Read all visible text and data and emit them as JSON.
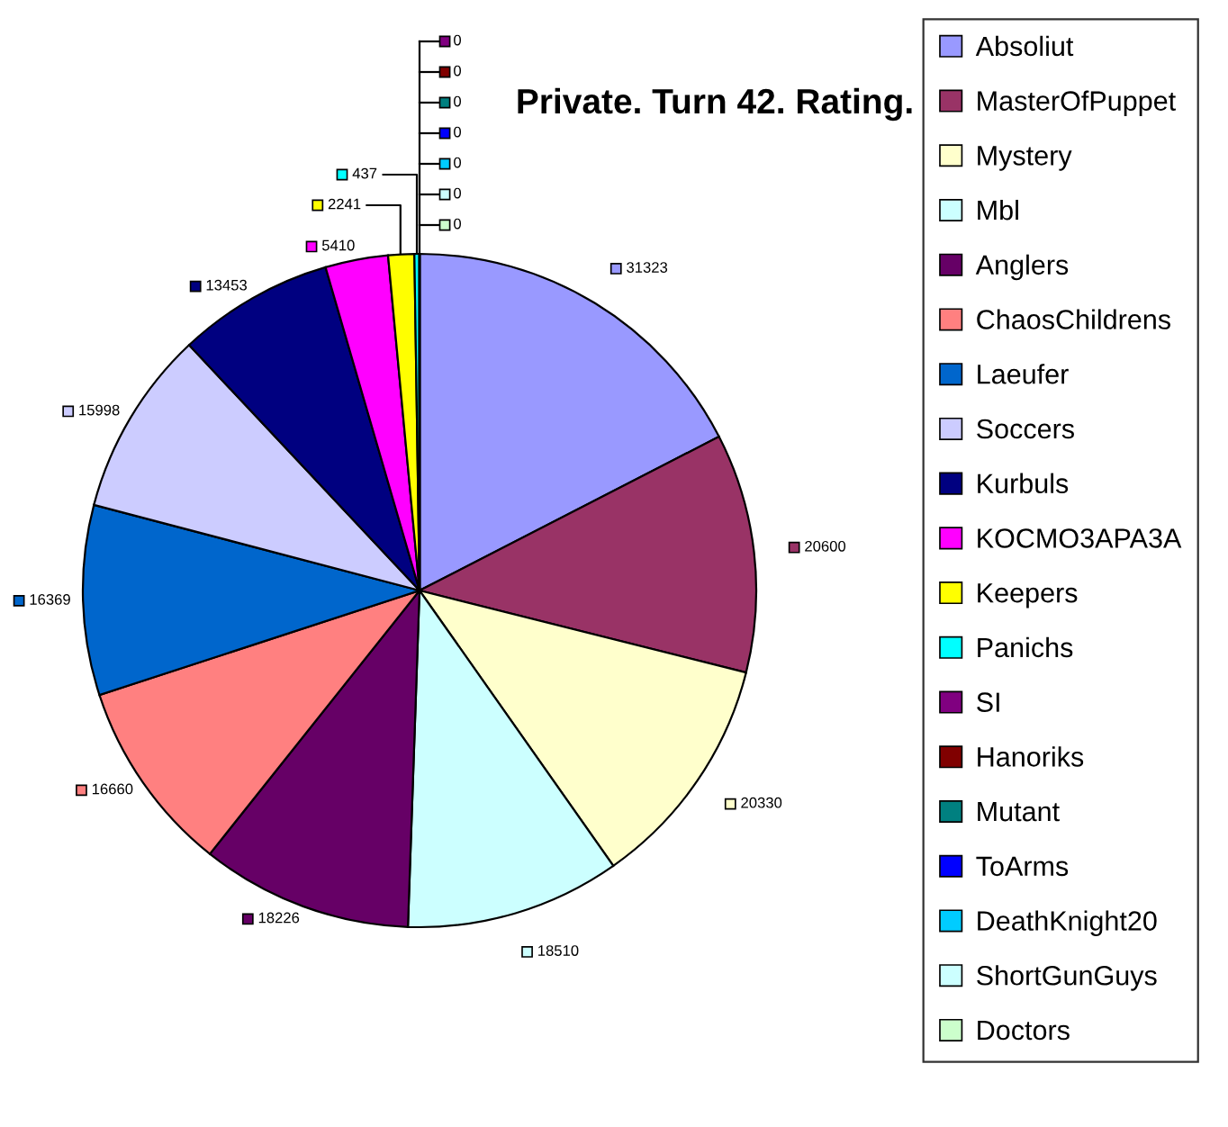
{
  "chart_data": {
    "type": "pie",
    "title": "Private. Turn 42. Rating.",
    "categories": [
      "Absoliut",
      "MasterOfPuppet",
      "Mystery",
      "Mbl",
      "Anglers",
      "ChaosChildrens",
      "Laeufer",
      "Soccers",
      "Kurbuls",
      "KOCMO3APA3A",
      "Keepers",
      "Panichs",
      "SI",
      "Hanoriks",
      "Mutant",
      "ToArms",
      "DeathKnight20",
      "ShortGunGuys",
      "Doctors"
    ],
    "values": [
      31323,
      20600,
      20330,
      18510,
      18226,
      16660,
      16369,
      15998,
      13453,
      5410,
      2241,
      437,
      0,
      0,
      0,
      0,
      0,
      0,
      0
    ],
    "colors": [
      "#9999ff",
      "#993366",
      "#ffffcc",
      "#ccffff",
      "#660066",
      "#ff8080",
      "#0066cc",
      "#ccccff",
      "#000080",
      "#ff00ff",
      "#ffff00",
      "#00ffff",
      "#800080",
      "#800000",
      "#008080",
      "#0000ff",
      "#00ccff",
      "#ccffff",
      "#ccffcc"
    ],
    "value_labels": [
      "31323",
      "20600",
      "20330",
      "18510",
      "18226",
      "16660",
      "16369",
      "15998",
      "13453",
      "5410",
      "2241",
      "437",
      "0",
      "0",
      "0",
      "0",
      "0",
      "0",
      "0"
    ],
    "legend": "right"
  }
}
